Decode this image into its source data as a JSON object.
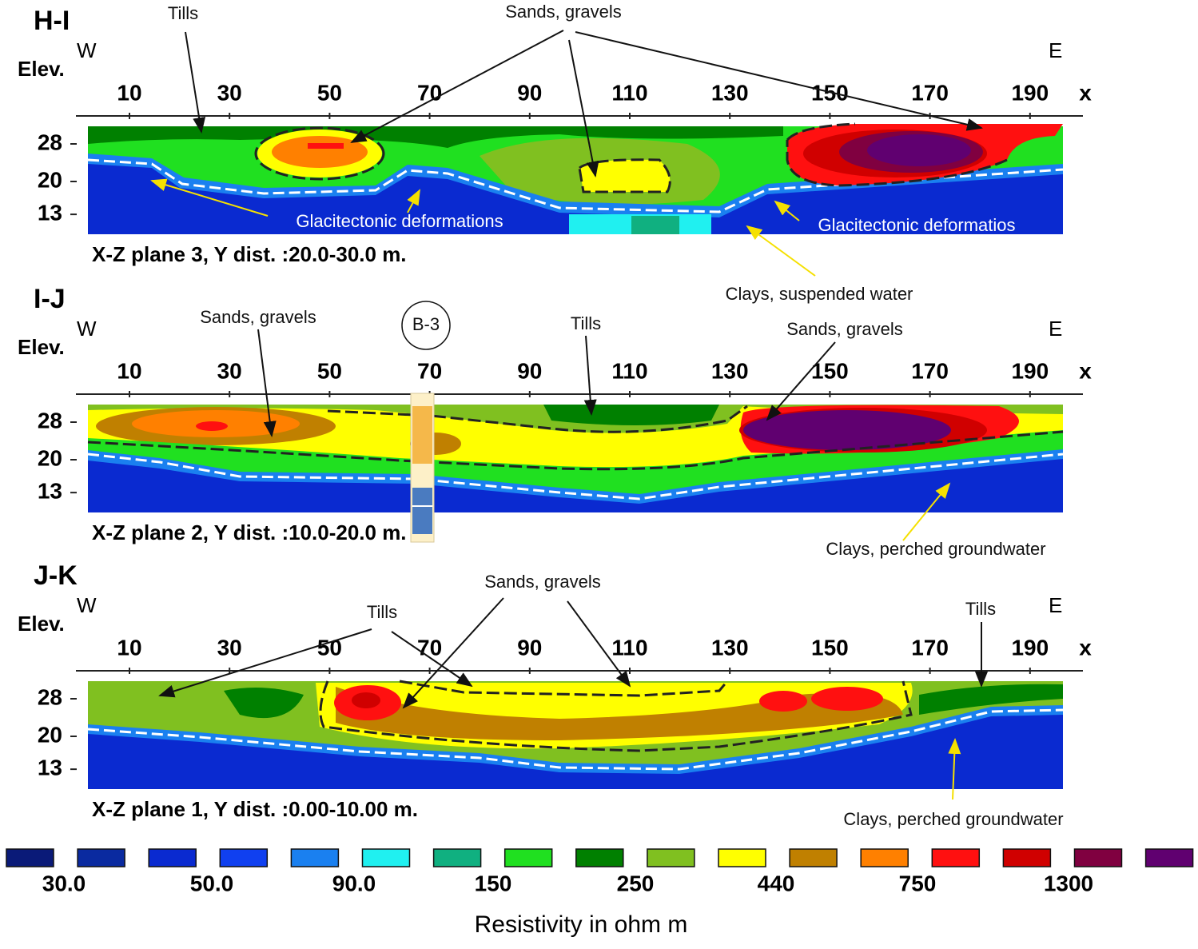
{
  "panels": [
    {
      "label": "H-I",
      "west": "W",
      "east": "E",
      "elev": "Elev.",
      "x_axis_label": "x",
      "xticks": [
        10,
        30,
        50,
        70,
        90,
        110,
        130,
        150,
        170,
        190
      ],
      "yticks": [
        28,
        20,
        13
      ],
      "caption": "X-Z plane 3, Y dist. :20.0-30.0 m.",
      "annotations": [
        "Tills",
        "Sands, gravels",
        "Glacitectonic deformations",
        "Glacitectonic deformatios",
        "Clays, suspended water"
      ]
    },
    {
      "label": "I-J",
      "west": "W",
      "east": "E",
      "elev": "Elev.",
      "x_axis_label": "x",
      "xticks": [
        10,
        30,
        50,
        70,
        90,
        110,
        130,
        150,
        170,
        190
      ],
      "yticks": [
        28,
        20,
        13
      ],
      "caption": "X-Z plane 2, Y dist. :10.0-20.0 m.",
      "annotations": [
        "Sands, gravels",
        "B-3",
        "Tills",
        "Sands, gravels",
        "Clays, perched groundwater"
      ]
    },
    {
      "label": "J-K",
      "west": "W",
      "east": "E",
      "elev": "Elev.",
      "x_axis_label": "x",
      "xticks": [
        10,
        30,
        50,
        70,
        90,
        110,
        130,
        150,
        170,
        190
      ],
      "yticks": [
        28,
        20,
        13
      ],
      "caption": "X-Z plane 1, Y dist. :0.00-10.00 m.",
      "annotations": [
        "Tills",
        "Sands, gravels",
        "Tills",
        "Clays, perched groundwater"
      ]
    }
  ],
  "legend": {
    "colors": [
      "#0a1a78",
      "#0a2aa0",
      "#0a2ad0",
      "#1040f0",
      "#1a80f0",
      "#20f0f0",
      "#10b080",
      "#20e020",
      "#008000",
      "#80c020",
      "#ffff00",
      "#c08000",
      "#ff8000",
      "#ff1010",
      "#d00000",
      "#800040",
      "#600070"
    ],
    "labels": [
      "30.0",
      "50.0",
      "90.0",
      "150",
      "250",
      "440",
      "750",
      "1300"
    ],
    "title": "Resistivity in ohm m"
  }
}
